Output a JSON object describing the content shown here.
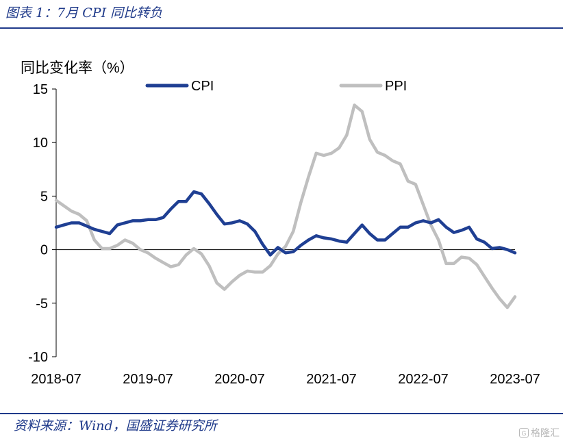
{
  "header": {
    "title": "图表 1：7月 CPI 同比转负"
  },
  "footer": {
    "source": "资料来源：Wind，国盛证券研究所"
  },
  "watermark": {
    "text": "格隆汇"
  },
  "chart_data": {
    "type": "line",
    "title": "",
    "ylabel": "同比变化率（%）",
    "xlabel": "",
    "ylim": [
      -10,
      15
    ],
    "yticks": [
      "15",
      "10",
      "5",
      "0",
      "-5",
      "-10"
    ],
    "xtick_labels": [
      "2018-07",
      "2019-07",
      "2020-07",
      "2021-07",
      "2022-07",
      "2023-07"
    ],
    "legend": "top",
    "grid": false,
    "x": [
      "2018-07",
      "2018-08",
      "2018-09",
      "2018-10",
      "2018-11",
      "2018-12",
      "2019-01",
      "2019-02",
      "2019-03",
      "2019-04",
      "2019-05",
      "2019-06",
      "2019-07",
      "2019-08",
      "2019-09",
      "2019-10",
      "2019-11",
      "2019-12",
      "2020-01",
      "2020-02",
      "2020-03",
      "2020-04",
      "2020-05",
      "2020-06",
      "2020-07",
      "2020-08",
      "2020-09",
      "2020-10",
      "2020-11",
      "2020-12",
      "2021-01",
      "2021-02",
      "2021-03",
      "2021-04",
      "2021-05",
      "2021-06",
      "2021-07",
      "2021-08",
      "2021-09",
      "2021-10",
      "2021-11",
      "2021-12",
      "2022-01",
      "2022-02",
      "2022-03",
      "2022-04",
      "2022-05",
      "2022-06",
      "2022-07",
      "2022-08",
      "2022-09",
      "2022-10",
      "2022-11",
      "2022-12",
      "2023-01",
      "2023-02",
      "2023-03",
      "2023-04",
      "2023-05",
      "2023-06",
      "2023-07"
    ],
    "series": [
      {
        "name": "CPI",
        "color": "#1f3f93",
        "values": [
          2.1,
          2.3,
          2.5,
          2.5,
          2.2,
          1.9,
          1.7,
          1.5,
          2.3,
          2.5,
          2.7,
          2.7,
          2.8,
          2.8,
          3.0,
          3.8,
          4.5,
          4.5,
          5.4,
          5.2,
          4.3,
          3.3,
          2.4,
          2.5,
          2.7,
          2.4,
          1.7,
          0.5,
          -0.5,
          0.2,
          -0.3,
          -0.2,
          0.4,
          0.9,
          1.3,
          1.1,
          1.0,
          0.8,
          0.7,
          1.5,
          2.3,
          1.5,
          0.9,
          0.9,
          1.5,
          2.1,
          2.1,
          2.5,
          2.7,
          2.5,
          2.8,
          2.1,
          1.6,
          1.8,
          2.1,
          1.0,
          0.7,
          0.1,
          0.2,
          0.0,
          -0.3
        ]
      },
      {
        "name": "PPI",
        "color": "#bfbfbf",
        "values": [
          4.6,
          4.1,
          3.6,
          3.3,
          2.7,
          0.9,
          0.1,
          0.1,
          0.4,
          0.9,
          0.6,
          0.0,
          -0.3,
          -0.8,
          -1.2,
          -1.6,
          -1.4,
          -0.5,
          0.1,
          -0.4,
          -1.5,
          -3.1,
          -3.7,
          -3.0,
          -2.4,
          -2.0,
          -2.1,
          -2.1,
          -1.5,
          -0.4,
          0.3,
          1.7,
          4.4,
          6.8,
          9.0,
          8.8,
          9.0,
          9.5,
          10.7,
          13.5,
          12.9,
          10.3,
          9.1,
          8.8,
          8.3,
          8.0,
          6.4,
          6.1,
          4.2,
          2.3,
          0.9,
          -1.3,
          -1.3,
          -0.7,
          -0.8,
          -1.4,
          -2.5,
          -3.6,
          -4.6,
          -5.4,
          -4.4
        ]
      }
    ]
  }
}
